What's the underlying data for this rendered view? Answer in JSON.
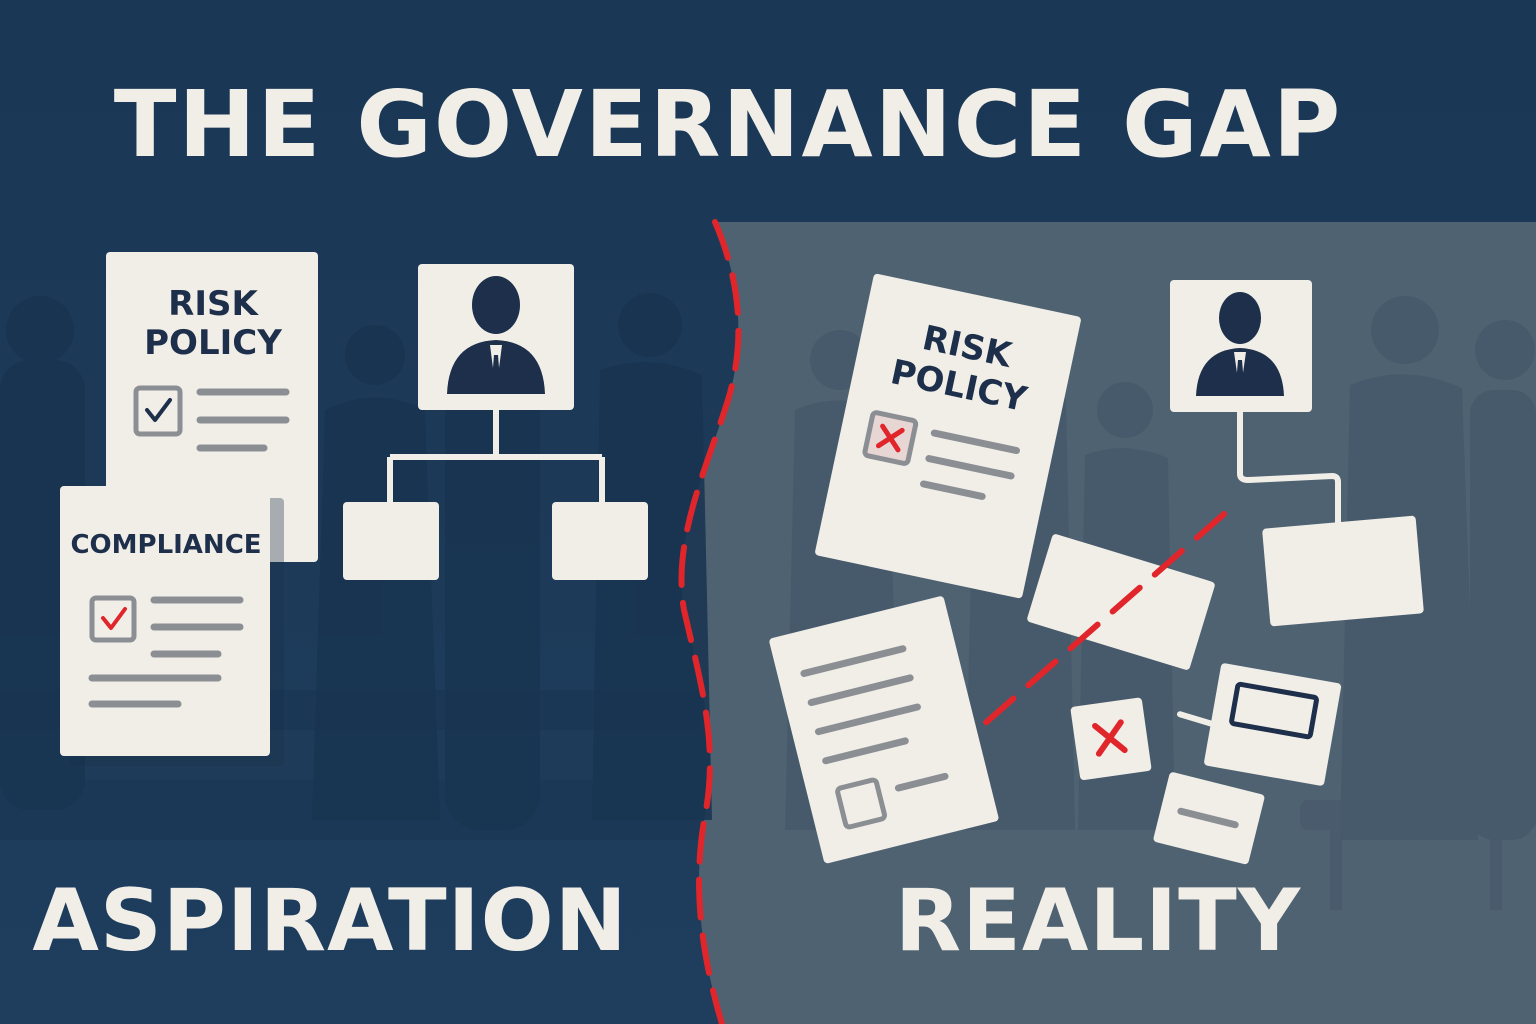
{
  "title": "THE GOVERNANCE GAP",
  "left": {
    "label": "ASPIRATION",
    "risk_doc": {
      "line1": "RISK",
      "line2": "POLICY"
    },
    "compliance_doc": {
      "title": "COMPLIANCE"
    }
  },
  "right": {
    "label": "REALITY",
    "risk_doc": {
      "line1": "RISK",
      "line2": "POLICY"
    }
  },
  "colors": {
    "left_bg": "#1c3a58",
    "right_bg": "#4f6272",
    "paper": "#f1eee8",
    "navy_text": "#1d2f4a",
    "accent_red": "#e0262b",
    "gray_line": "#8b8f94"
  }
}
